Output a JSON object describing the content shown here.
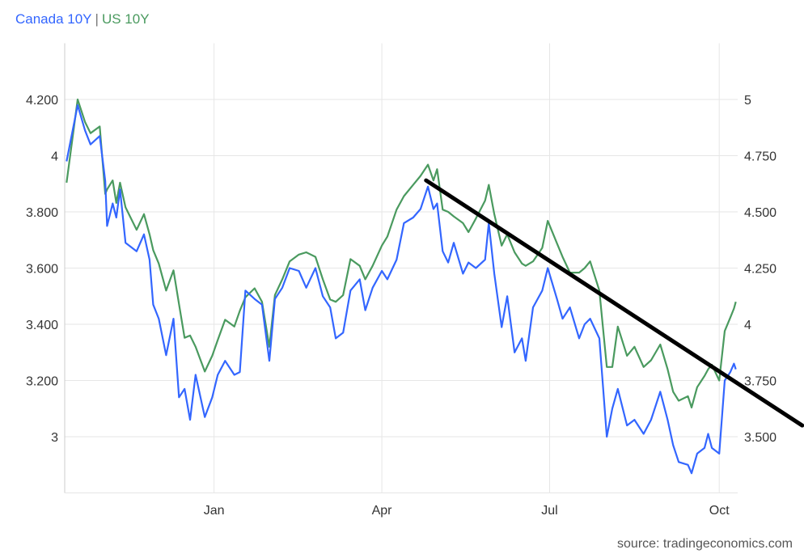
{
  "legend": {
    "canada": "Canada 10Y",
    "separator": "|",
    "us": "US 10Y"
  },
  "source": "source: tradingeconomics.com",
  "colors": {
    "canada": "#3366ff",
    "us": "#4a9a5f",
    "trendline": "#000000",
    "grid": "#e6e6e6"
  },
  "chart_data": {
    "type": "line",
    "title": "",
    "xlabel": "",
    "ylabel": "",
    "ylabel_right": "",
    "xlim": [
      "2023-10-12",
      "2024-10-11"
    ],
    "ylim": [
      2.8,
      4.4
    ],
    "ylim_right": [
      3.25,
      5.25
    ],
    "grid": true,
    "legend_placement": "top-left",
    "x_ticks": [
      {
        "date": "2024-01-01",
        "label": "Jan"
      },
      {
        "date": "2024-04-01",
        "label": "Apr"
      },
      {
        "date": "2024-07-01",
        "label": "Jul"
      },
      {
        "date": "2024-10-01",
        "label": "Oct"
      }
    ],
    "y_ticks": [
      {
        "v": 4.2,
        "label": "4.200"
      },
      {
        "v": 4.0,
        "label": "4"
      },
      {
        "v": 3.8,
        "label": "3.800"
      },
      {
        "v": 3.6,
        "label": "3.600"
      },
      {
        "v": 3.4,
        "label": "3.400"
      },
      {
        "v": 3.2,
        "label": "3.200"
      },
      {
        "v": 3.0,
        "label": "3"
      }
    ],
    "y_ticks_right": [
      {
        "v": 5.0,
        "label": "5"
      },
      {
        "v": 4.75,
        "label": "4.750"
      },
      {
        "v": 4.5,
        "label": "4.500"
      },
      {
        "v": 4.25,
        "label": "4.250"
      },
      {
        "v": 4.0,
        "label": "4"
      },
      {
        "v": 3.75,
        "label": "3.750"
      },
      {
        "v": 3.5,
        "label": "3.500"
      }
    ],
    "x": [
      "2023-10-13",
      "2023-10-19",
      "2023-10-23",
      "2023-10-26",
      "2023-10-31",
      "2023-11-03",
      "2023-11-04",
      "2023-11-07",
      "2023-11-09",
      "2023-11-11",
      "2023-11-14",
      "2023-11-20",
      "2023-11-24",
      "2023-11-27",
      "2023-11-29",
      "2023-12-02",
      "2023-12-06",
      "2023-12-10",
      "2023-12-13",
      "2023-12-16",
      "2023-12-19",
      "2023-12-22",
      "2023-12-27",
      "2023-12-31",
      "2024-01-03",
      "2024-01-07",
      "2024-01-12",
      "2024-01-15",
      "2024-01-18",
      "2024-01-23",
      "2024-01-27",
      "2024-01-31",
      "2024-02-03",
      "2024-02-07",
      "2024-02-11",
      "2024-02-16",
      "2024-02-20",
      "2024-02-25",
      "2024-02-29",
      "2024-03-04",
      "2024-03-07",
      "2024-03-11",
      "2024-03-15",
      "2024-03-20",
      "2024-03-23",
      "2024-03-27",
      "2024-04-01",
      "2024-04-04",
      "2024-04-09",
      "2024-04-13",
      "2024-04-18",
      "2024-04-22",
      "2024-04-26",
      "2024-04-29",
      "2024-05-01",
      "2024-05-04",
      "2024-05-07",
      "2024-05-10",
      "2024-05-15",
      "2024-05-18",
      "2024-05-22",
      "2024-05-27",
      "2024-05-29",
      "2024-06-01",
      "2024-06-05",
      "2024-06-08",
      "2024-06-12",
      "2024-06-16",
      "2024-06-18",
      "2024-06-22",
      "2024-06-27",
      "2024-06-30",
      "2024-07-05",
      "2024-07-08",
      "2024-07-12",
      "2024-07-17",
      "2024-07-20",
      "2024-07-23",
      "2024-07-28",
      "2024-08-01",
      "2024-08-04",
      "2024-08-07",
      "2024-08-12",
      "2024-08-16",
      "2024-08-21",
      "2024-08-25",
      "2024-08-30",
      "2024-09-03",
      "2024-09-06",
      "2024-09-09",
      "2024-09-14",
      "2024-09-16",
      "2024-09-19",
      "2024-09-23",
      "2024-09-25",
      "2024-09-27",
      "2024-10-01",
      "2024-10-04",
      "2024-10-07",
      "2024-10-09",
      "2024-10-10"
    ],
    "series": [
      {
        "name": "Canada 10Y",
        "axis": "left",
        "values": [
          3.98,
          4.18,
          4.09,
          4.04,
          4.07,
          3.91,
          3.75,
          3.83,
          3.78,
          3.88,
          3.69,
          3.66,
          3.72,
          3.63,
          3.47,
          3.42,
          3.29,
          3.42,
          3.14,
          3.17,
          3.06,
          3.22,
          3.07,
          3.14,
          3.22,
          3.27,
          3.22,
          3.23,
          3.52,
          3.49,
          3.47,
          3.27,
          3.49,
          3.53,
          3.6,
          3.59,
          3.53,
          3.6,
          3.5,
          3.46,
          3.35,
          3.37,
          3.52,
          3.56,
          3.45,
          3.53,
          3.59,
          3.56,
          3.63,
          3.76,
          3.78,
          3.81,
          3.89,
          3.81,
          3.83,
          3.66,
          3.62,
          3.69,
          3.58,
          3.62,
          3.6,
          3.63,
          3.76,
          3.58,
          3.39,
          3.5,
          3.3,
          3.35,
          3.27,
          3.46,
          3.52,
          3.6,
          3.49,
          3.42,
          3.46,
          3.35,
          3.4,
          3.42,
          3.35,
          3.0,
          3.1,
          3.17,
          3.04,
          3.06,
          3.01,
          3.06,
          3.16,
          3.06,
          2.97,
          2.91,
          2.9,
          2.87,
          2.94,
          2.96,
          3.01,
          2.96,
          2.94,
          3.2,
          3.23,
          3.26,
          3.24
        ]
      },
      {
        "name": "US 10Y",
        "axis": "right",
        "values": [
          4.63,
          5.0,
          4.9,
          4.85,
          4.88,
          4.58,
          4.6,
          4.64,
          4.54,
          4.63,
          4.52,
          4.42,
          4.49,
          4.4,
          4.33,
          4.27,
          4.15,
          4.24,
          4.09,
          3.94,
          3.95,
          3.9,
          3.79,
          3.86,
          3.93,
          4.02,
          3.99,
          4.06,
          4.12,
          4.16,
          4.1,
          3.9,
          4.13,
          4.2,
          4.28,
          4.31,
          4.32,
          4.3,
          4.2,
          4.11,
          4.1,
          4.13,
          4.29,
          4.26,
          4.2,
          4.26,
          4.35,
          4.39,
          4.51,
          4.57,
          4.62,
          4.66,
          4.71,
          4.64,
          4.69,
          4.51,
          4.5,
          4.48,
          4.45,
          4.41,
          4.47,
          4.55,
          4.62,
          4.49,
          4.35,
          4.4,
          4.32,
          4.27,
          4.26,
          4.28,
          4.34,
          4.46,
          4.36,
          4.3,
          4.23,
          4.23,
          4.25,
          4.28,
          4.15,
          3.81,
          3.81,
          3.99,
          3.86,
          3.9,
          3.81,
          3.84,
          3.91,
          3.8,
          3.7,
          3.66,
          3.68,
          3.63,
          3.72,
          3.77,
          3.8,
          3.82,
          3.75,
          3.97,
          4.03,
          4.07,
          4.1
        ]
      }
    ],
    "annotations": [
      {
        "type": "trendline",
        "axis": "right",
        "start": [
          "2024-04-25",
          4.64
        ],
        "end": [
          "2024-11-15",
          3.55
        ]
      }
    ]
  }
}
